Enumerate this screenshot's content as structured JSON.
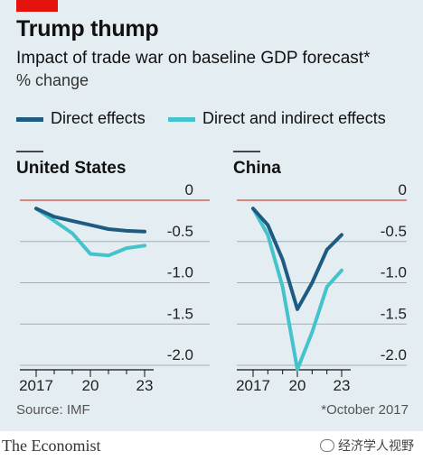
{
  "header": {
    "title": "Trump thump",
    "subtitle": "Impact of trade war on baseline GDP forecast*",
    "unit": "% change"
  },
  "colors": {
    "direct": "#1d5b82",
    "indirect": "#45c3cc",
    "zero_line": "#d06a5c",
    "brand_red": "#e3120b",
    "background": "#e4edf1"
  },
  "footer": {
    "source": "Source: IMF",
    "footnote": "*October 2017",
    "publisher": "The Economist",
    "watermark": "经济学人视野"
  },
  "chart_data": [
    {
      "type": "line",
      "title": "United States",
      "x": [
        2017,
        2018,
        2019,
        2020,
        2021,
        2022,
        2023
      ],
      "x_tick_labels": [
        "2017",
        "20",
        "23"
      ],
      "x_tick_values": [
        2017,
        2020,
        2023
      ],
      "y_tick_labels": [
        "0",
        "-0.5",
        "-1.0",
        "-1.5",
        "-2.0"
      ],
      "y_tick_values": [
        0,
        -0.5,
        -1.0,
        -1.5,
        -2.0
      ],
      "ylim": [
        -2.2,
        0.1
      ],
      "series": [
        {
          "name": "Direct effects",
          "color": "#1d5b82",
          "values": [
            -0.1,
            -0.2,
            -0.25,
            -0.3,
            -0.35,
            -0.37,
            -0.38
          ]
        },
        {
          "name": "Direct and indirect effects",
          "color": "#45c3cc",
          "values": [
            -0.1,
            -0.25,
            -0.4,
            -0.65,
            -0.67,
            -0.58,
            -0.55
          ]
        }
      ]
    },
    {
      "type": "line",
      "title": "China",
      "x": [
        2017,
        2018,
        2019,
        2020,
        2021,
        2022,
        2023
      ],
      "x_tick_labels": [
        "2017",
        "20",
        "23"
      ],
      "x_tick_values": [
        2017,
        2020,
        2023
      ],
      "y_tick_labels": [
        "0",
        "-0.5",
        "-1.0",
        "-1.5",
        "-2.0"
      ],
      "y_tick_values": [
        0,
        -0.5,
        -1.0,
        -1.5,
        -2.0
      ],
      "ylim": [
        -2.2,
        0.1
      ],
      "series": [
        {
          "name": "Direct effects",
          "color": "#1d5b82",
          "values": [
            -0.1,
            -0.3,
            -0.72,
            -1.32,
            -1.0,
            -0.6,
            -0.42
          ]
        },
        {
          "name": "Direct and indirect effects",
          "color": "#45c3cc",
          "values": [
            -0.1,
            -0.42,
            -1.05,
            -2.05,
            -1.6,
            -1.05,
            -0.85
          ]
        }
      ]
    }
  ]
}
